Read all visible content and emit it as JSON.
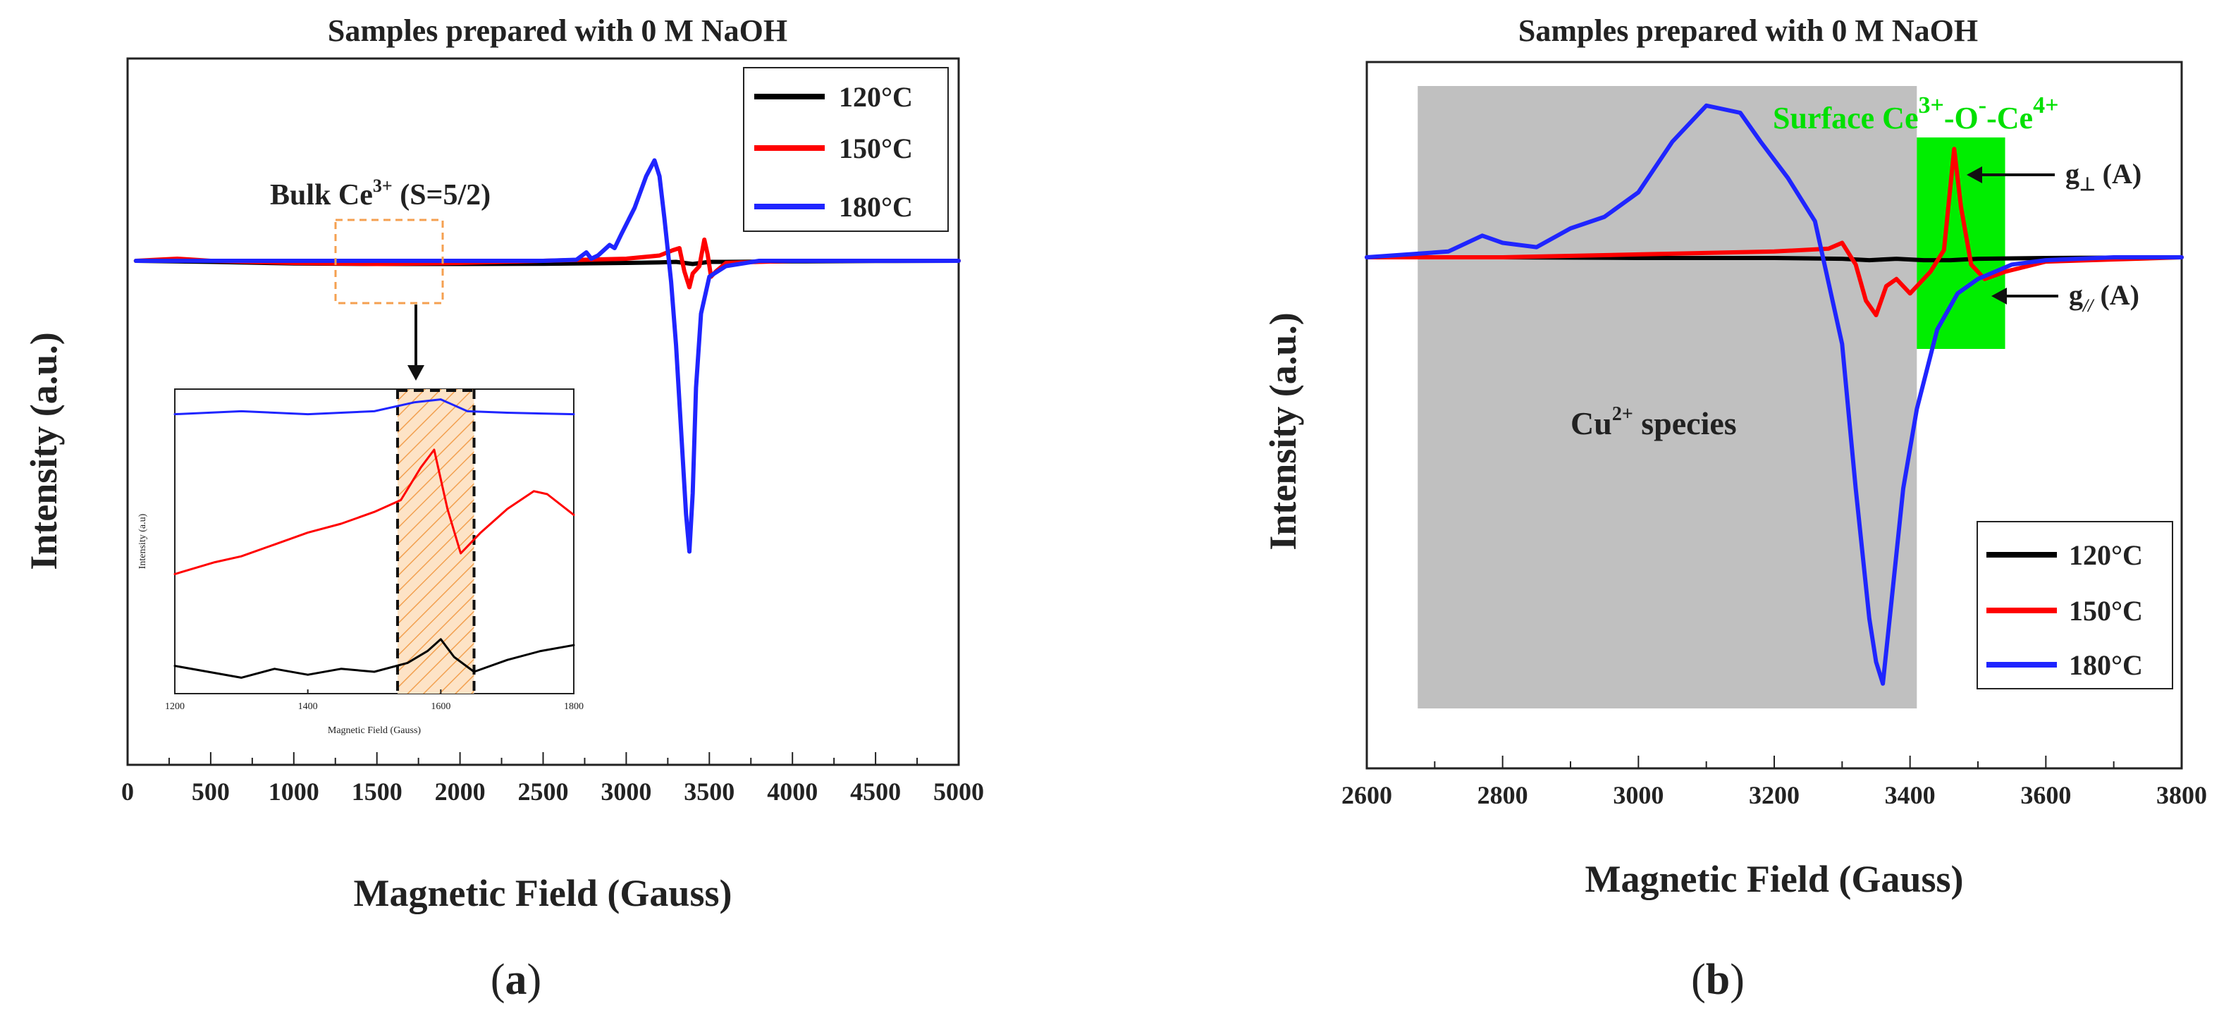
{
  "chart_data": [
    {
      "panel": "a",
      "type": "line",
      "title": "Samples prepared with 0 M NaOH",
      "xlabel": "Magnetic Field (Gauss)",
      "ylabel": "Intensity (a.u.)",
      "xlim": [
        0,
        5000
      ],
      "xticks": [
        "0",
        "500",
        "1000",
        "1500",
        "2000",
        "2500",
        "3000",
        "3500",
        "4000",
        "4500",
        "5000"
      ],
      "legend": {
        "placement": "top-right",
        "entries": [
          "120°C",
          "150°C",
          "180°C"
        ]
      },
      "series": [
        {
          "name": "120°C",
          "color": "#000000",
          "x": [
            50,
            500,
            1000,
            1500,
            2000,
            2500,
            3000,
            3200,
            3300,
            3350,
            3400,
            3450,
            3500,
            3600,
            4000,
            4500,
            5000
          ],
          "y": [
            0,
            -0.01,
            -0.025,
            -0.03,
            -0.03,
            -0.028,
            -0.02,
            -0.015,
            -0.01,
            -0.02,
            -0.03,
            -0.02,
            -0.01,
            -0.01,
            -0.005,
            -0.002,
            0
          ]
        },
        {
          "name": "150°C",
          "color": "#ff0000",
          "x": [
            50,
            300,
            500,
            1000,
            1500,
            2000,
            2500,
            3000,
            3200,
            3280,
            3320,
            3350,
            3380,
            3400,
            3440,
            3470,
            3490,
            3510,
            3540,
            3600,
            4000,
            4500,
            5000
          ],
          "y": [
            0,
            0.02,
            0,
            -0.02,
            -0.03,
            -0.02,
            0,
            0.02,
            0.05,
            0.1,
            0.12,
            -0.1,
            -0.25,
            -0.12,
            -0.05,
            0.2,
            0.06,
            -0.15,
            -0.1,
            -0.02,
            0,
            0,
            0
          ]
        },
        {
          "name": "180°C",
          "color": "#1f25ff",
          "x": [
            50,
            500,
            1000,
            1500,
            2000,
            2500,
            2700,
            2760,
            2790,
            2830,
            2900,
            2930,
            2970,
            3050,
            3120,
            3170,
            3200,
            3230,
            3270,
            3300,
            3330,
            3360,
            3380,
            3400,
            3420,
            3450,
            3500,
            3600,
            3800,
            4000,
            4500,
            5000
          ],
          "y": [
            0,
            0,
            0,
            0,
            0,
            0,
            0.01,
            0.08,
            0.02,
            0.05,
            0.15,
            0.12,
            0.25,
            0.5,
            0.8,
            0.95,
            0.8,
            0.4,
            -0.2,
            -0.8,
            -1.6,
            -2.4,
            -2.75,
            -2.2,
            -1.2,
            -0.5,
            -0.15,
            -0.05,
            0,
            0,
            0,
            0
          ]
        }
      ],
      "annotations": {
        "bulk_label": "Bulk Ce",
        "bulk_sup": "3+",
        "bulk_tail": " (S=5/2)"
      },
      "inset": {
        "xlabel": "Magnetic Field (Gauss)",
        "ylabel": "Intensity (a.u)",
        "xlim": [
          1200,
          1800
        ],
        "xticks": [
          "1200",
          "1400",
          "1600",
          "1800"
        ],
        "highlight_range": [
          1535,
          1650
        ],
        "series": [
          {
            "name": "180°C",
            "color": "#1f25ff",
            "x": [
              1200,
              1300,
              1400,
              1500,
              1560,
              1600,
              1640,
              1700,
              1800
            ],
            "y": [
              9.2,
              9.3,
              9.2,
              9.3,
              9.6,
              9.7,
              9.3,
              9.25,
              9.2
            ]
          },
          {
            "name": "150°C",
            "color": "#ff0000",
            "x": [
              1200,
              1260,
              1300,
              1350,
              1400,
              1450,
              1500,
              1540,
              1570,
              1590,
              1610,
              1630,
              1660,
              1700,
              1740,
              1760,
              1800
            ],
            "y": [
              3.8,
              4.2,
              4.4,
              4.8,
              5.2,
              5.5,
              5.9,
              6.3,
              7.4,
              8.0,
              6.0,
              4.5,
              5.2,
              6.0,
              6.6,
              6.5,
              5.8
            ]
          },
          {
            "name": "120°C",
            "color": "#000000",
            "x": [
              1200,
              1250,
              1300,
              1350,
              1400,
              1450,
              1500,
              1550,
              1580,
              1600,
              1620,
              1650,
              1700,
              1750,
              1800
            ],
            "y": [
              0.7,
              0.5,
              0.3,
              0.6,
              0.4,
              0.6,
              0.5,
              0.8,
              1.2,
              1.6,
              1.0,
              0.5,
              0.9,
              1.2,
              1.4
            ]
          }
        ]
      }
    },
    {
      "panel": "b",
      "type": "line",
      "title": "Samples prepared with 0 M NaOH",
      "xlabel": "Magnetic Field (Gauss)",
      "ylabel": "Intensity (a.u.)",
      "xlim": [
        2600,
        3800
      ],
      "xticks": [
        "2600",
        "2800",
        "3000",
        "3200",
        "3400",
        "3600",
        "3800"
      ],
      "legend": {
        "placement": "bottom-right",
        "entries": [
          "120°C",
          "150°C",
          "180°C"
        ]
      },
      "regions": [
        {
          "label": "Cu species",
          "sup": "2+",
          "x_range": [
            2675,
            3410
          ],
          "color": "#c0c0c0"
        },
        {
          "label": "Surface",
          "x_range": [
            3410,
            3540
          ],
          "color": "#00ee00"
        }
      ],
      "series": [
        {
          "name": "120°C",
          "color": "#000000",
          "x": [
            2600,
            2800,
            3000,
            3200,
            3300,
            3340,
            3380,
            3420,
            3460,
            3500,
            3600,
            3800
          ],
          "y": [
            0,
            0,
            -0.005,
            -0.005,
            -0.01,
            -0.02,
            -0.01,
            -0.02,
            -0.02,
            -0.01,
            -0.005,
            0
          ]
        },
        {
          "name": "150°C",
          "color": "#ff0000",
          "x": [
            2600,
            2800,
            3000,
            3200,
            3280,
            3300,
            3320,
            3335,
            3350,
            3365,
            3380,
            3400,
            3430,
            3450,
            3465,
            3475,
            3490,
            3510,
            3540,
            3600,
            3800
          ],
          "y": [
            0,
            0,
            0.02,
            0.04,
            0.06,
            0.1,
            -0.05,
            -0.3,
            -0.4,
            -0.2,
            -0.15,
            -0.25,
            -0.1,
            0.05,
            0.75,
            0.35,
            -0.05,
            -0.15,
            -0.1,
            -0.03,
            0
          ]
        },
        {
          "name": "180°C",
          "color": "#1f25ff",
          "x": [
            2600,
            2720,
            2770,
            2800,
            2850,
            2900,
            2950,
            3000,
            3050,
            3100,
            3150,
            3180,
            3220,
            3260,
            3300,
            3320,
            3340,
            3350,
            3360,
            3370,
            3390,
            3410,
            3440,
            3470,
            3500,
            3550,
            3600,
            3700,
            3800
          ],
          "y": [
            0,
            0.04,
            0.15,
            0.1,
            0.07,
            0.2,
            0.28,
            0.45,
            0.8,
            1.05,
            1.0,
            0.8,
            0.55,
            0.25,
            -0.6,
            -1.6,
            -2.5,
            -2.8,
            -2.95,
            -2.5,
            -1.6,
            -1.05,
            -0.5,
            -0.25,
            -0.15,
            -0.05,
            -0.02,
            0,
            0
          ]
        }
      ],
      "annotations": {
        "surface_prefix": "Surface Ce",
        "surface_sup1": "3+",
        "surface_mid1": "-O",
        "surface_sup2": "-",
        "surface_mid2": "-Ce",
        "surface_sup3": "4+",
        "cu_label": "Cu",
        "cu_sup": "2+",
        "cu_tail": " species",
        "g_perp": "g",
        "g_perp_sub": "⊥",
        "g_perp_tail": " (A)",
        "g_par": "g",
        "g_par_sub": "//",
        "g_par_tail": " (A)"
      }
    }
  ],
  "captions": {
    "a": "a",
    "b": "b"
  }
}
